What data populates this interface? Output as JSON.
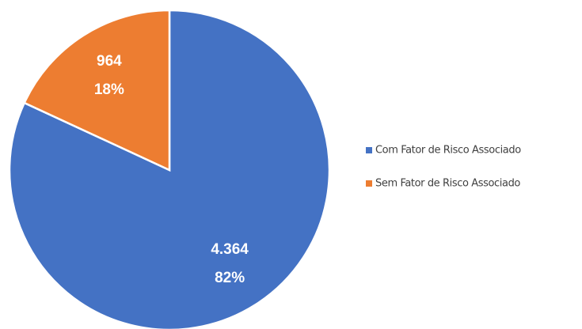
{
  "chart_data": {
    "type": "pie",
    "categories": [
      "Com Fator de Risco Associado",
      "Sem Fator de Risco Associado"
    ],
    "values": [
      4364,
      964
    ],
    "value_labels": [
      "4.364",
      "964"
    ],
    "percent_labels": [
      "82%",
      "18%"
    ],
    "colors": [
      "#4472c4",
      "#ed7d31"
    ],
    "legend": "right"
  }
}
